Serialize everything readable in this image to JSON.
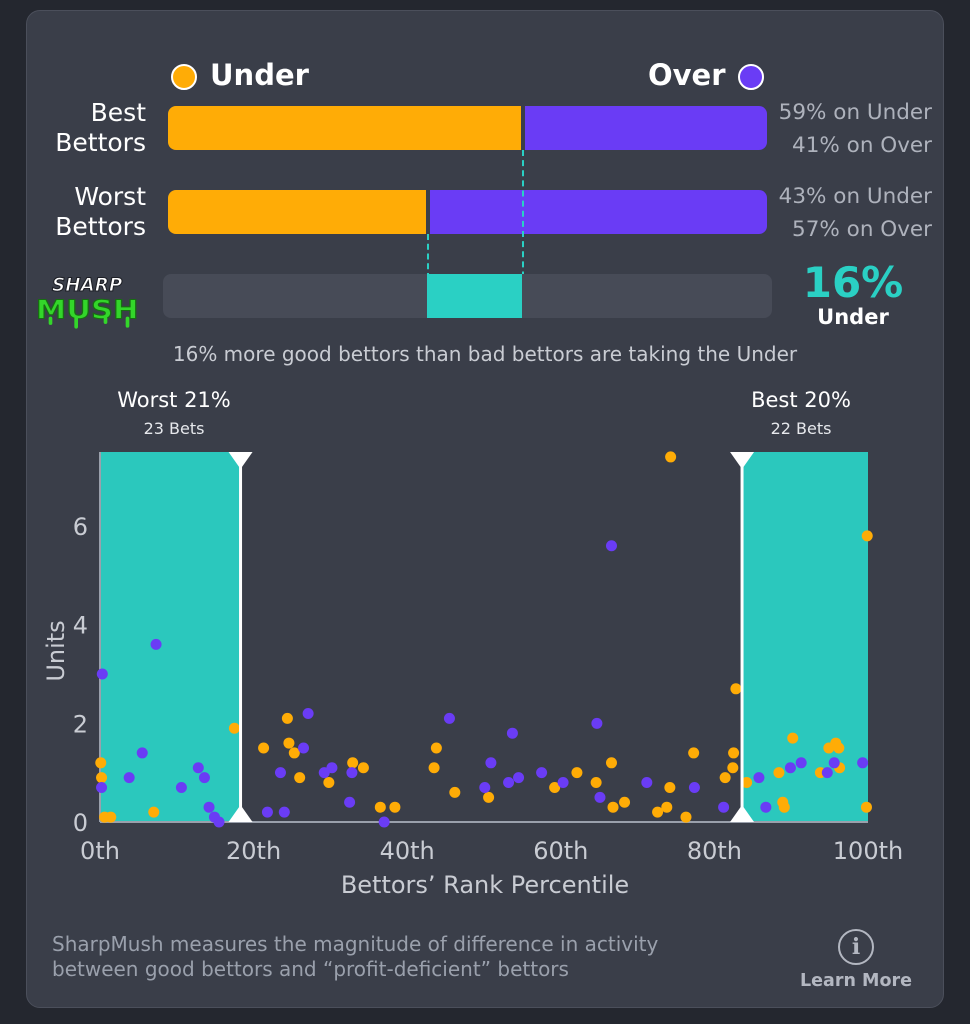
{
  "legend": {
    "under_label": "Under",
    "over_label": "Over",
    "under_color": "#ffac06",
    "over_color": "#6a3cf5"
  },
  "bars": [
    {
      "label_line1": "Best",
      "label_line2": "Bettors",
      "under_pct": 59,
      "over_pct": 41,
      "under_text": "59% on Under",
      "over_text": "41% on Over"
    },
    {
      "label_line1": "Worst",
      "label_line2": "Bettors",
      "under_pct": 43,
      "over_pct": 57,
      "under_text": "43% on Under",
      "over_text": "57% on Over"
    }
  ],
  "sharpmush": {
    "logo_line1": "SHARP",
    "logo_line2": "MUSH",
    "difference_pct": 16,
    "big_value": "16%",
    "side": "Under",
    "summary": "16% more good bettors than bad bettors are taking the Under",
    "accent_color": "#2ad0c4"
  },
  "chart_data": {
    "type": "scatter",
    "xlabel": "Bettors’ Rank Percentile",
    "ylabel": "Units",
    "xlim": [
      0,
      100
    ],
    "ylim": [
      0,
      7.5
    ],
    "x_ticks": [
      0,
      20,
      40,
      60,
      80,
      100
    ],
    "x_tick_labels": [
      "0th",
      "20th",
      "40th",
      "60th",
      "80th",
      "100th"
    ],
    "y_ticks": [
      0,
      2,
      4,
      6
    ],
    "y_tick_labels": [
      "0",
      "2",
      "4",
      "6"
    ],
    "grid": false,
    "highlight_regions": [
      {
        "title": "Worst 21%",
        "subtitle": "23 Bets",
        "x_start": 0,
        "x_end": 18.3
      },
      {
        "title": "Best 20%",
        "subtitle": "22 Bets",
        "x_start": 83.6,
        "x_end": 100
      }
    ],
    "series": [
      {
        "name": "Under",
        "color": "#ffac06",
        "points": [
          [
            0.1,
            1.2
          ],
          [
            0.2,
            0.9
          ],
          [
            0.6,
            0.1
          ],
          [
            1.4,
            0.1
          ],
          [
            7,
            0.2
          ],
          [
            17.5,
            1.9
          ],
          [
            21.3,
            1.5
          ],
          [
            24.4,
            2.1
          ],
          [
            24.6,
            1.6
          ],
          [
            25.3,
            1.4
          ],
          [
            26,
            0.9
          ],
          [
            29.8,
            0.8
          ],
          [
            32.9,
            1.2
          ],
          [
            34.3,
            1.1
          ],
          [
            36.5,
            0.3
          ],
          [
            38.4,
            0.3
          ],
          [
            43.5,
            1.1
          ],
          [
            43.8,
            1.5
          ],
          [
            46.2,
            0.6
          ],
          [
            50.6,
            0.5
          ],
          [
            59.2,
            0.7
          ],
          [
            62.1,
            1
          ],
          [
            64.6,
            0.8
          ],
          [
            66.6,
            1.2
          ],
          [
            66.8,
            0.3
          ],
          [
            68.3,
            0.4
          ],
          [
            72.6,
            0.2
          ],
          [
            73.8,
            0.3
          ],
          [
            74.2,
            0.7
          ],
          [
            74.3,
            7.4
          ],
          [
            76.3,
            0.1
          ],
          [
            77.3,
            1.4
          ],
          [
            81.4,
            0.9
          ],
          [
            82.4,
            1.1
          ],
          [
            82.5,
            1.4
          ],
          [
            82.8,
            2.7
          ],
          [
            84.2,
            0.8
          ],
          [
            88.4,
            1
          ],
          [
            88.9,
            0.4
          ],
          [
            89.1,
            0.3
          ],
          [
            90.2,
            1.7
          ],
          [
            93.8,
            1
          ],
          [
            94.9,
            1.5
          ],
          [
            95.8,
            1.6
          ],
          [
            96.3,
            1.1
          ],
          [
            96.2,
            1.5
          ],
          [
            99.8,
            0.3
          ],
          [
            99.9,
            5.8
          ]
        ]
      },
      {
        "name": "Over",
        "color": "#6a3cf5",
        "points": [
          [
            0.2,
            0.7
          ],
          [
            0.3,
            3
          ],
          [
            3.8,
            0.9
          ],
          [
            5.5,
            1.4
          ],
          [
            7.3,
            3.6
          ],
          [
            10.6,
            0.7
          ],
          [
            12.8,
            1.1
          ],
          [
            13.6,
            0.9
          ],
          [
            14.2,
            0.3
          ],
          [
            14.9,
            0.1
          ],
          [
            15.5,
            0
          ],
          [
            21.8,
            0.2
          ],
          [
            23.5,
            1
          ],
          [
            24,
            0.2
          ],
          [
            26.5,
            1.5
          ],
          [
            27.1,
            2.2
          ],
          [
            29.2,
            1
          ],
          [
            30.2,
            1.1
          ],
          [
            32.5,
            0.4
          ],
          [
            32.8,
            1
          ],
          [
            37,
            0
          ],
          [
            45.5,
            2.1
          ],
          [
            50.1,
            0.7
          ],
          [
            50.9,
            1.2
          ],
          [
            53.2,
            0.8
          ],
          [
            53.7,
            1.8
          ],
          [
            54.5,
            0.9
          ],
          [
            57.5,
            1
          ],
          [
            60.3,
            0.8
          ],
          [
            64.7,
            2
          ],
          [
            65.1,
            0.5
          ],
          [
            66.6,
            5.6
          ],
          [
            71.2,
            0.8
          ],
          [
            77.4,
            0.7
          ],
          [
            81.2,
            0.3
          ],
          [
            85.8,
            0.9
          ],
          [
            86.7,
            0.3
          ],
          [
            89.9,
            1.1
          ],
          [
            91.3,
            1.2
          ],
          [
            94.7,
            1
          ],
          [
            95.6,
            1.2
          ],
          [
            99.3,
            1.2
          ]
        ]
      }
    ]
  },
  "footer": {
    "line1": "SharpMush measures the magnitude of difference in activity",
    "line2": "between good bettors and “profit-deficient” bettors",
    "learn_more": "Learn More",
    "info_icon": "info-circle-icon"
  }
}
